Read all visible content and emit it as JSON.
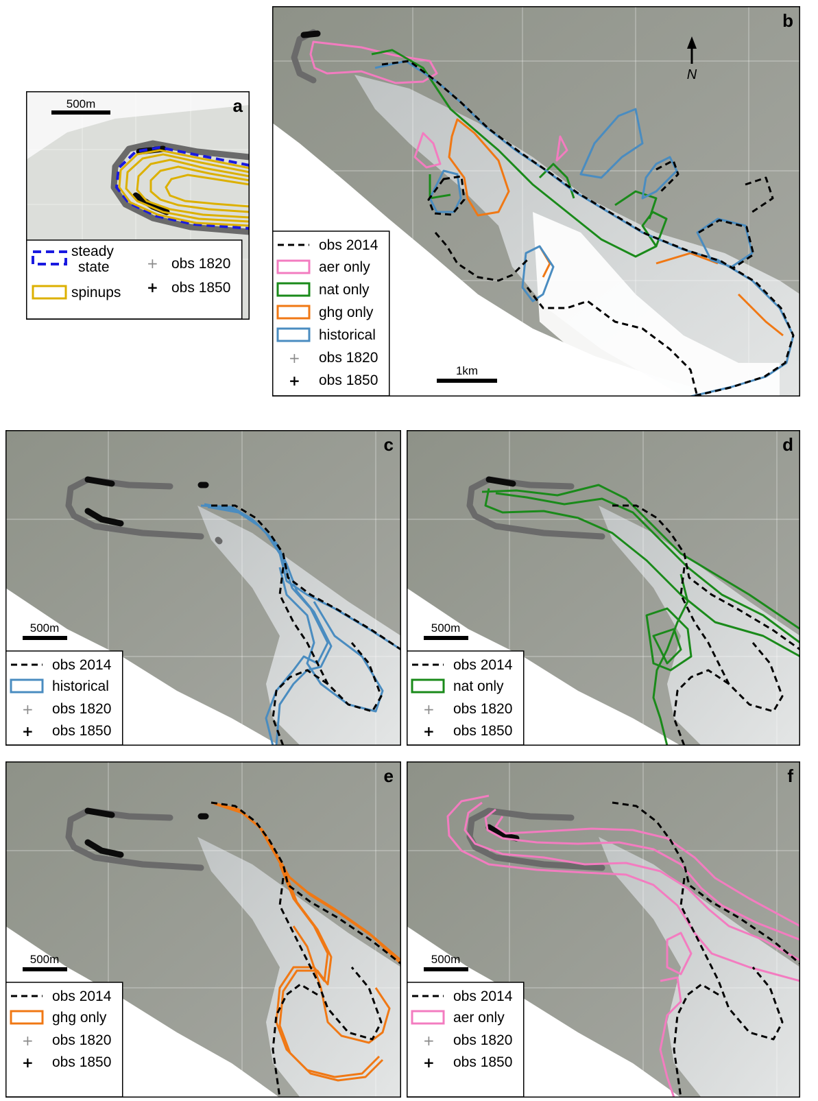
{
  "colors": {
    "obs2014": "#000000",
    "aer_only": "#f37cc0",
    "nat_only": "#1a8a1a",
    "ghg_only": "#f07814",
    "historical": "#4a8cc0",
    "spinups": "#dcb000",
    "steady_state": "#1a1ae0",
    "obs1820": "#7a7a7a",
    "obs1850": "#000000"
  },
  "panels": {
    "a": {
      "label": "a",
      "scalebar": "500m",
      "legend": {
        "steady_state": "steady",
        "steady_state_2": "state",
        "spinups": "spinups",
        "obs1820": "obs 1820",
        "obs1850": "obs 1850"
      }
    },
    "b": {
      "label": "b",
      "scalebar": "1km",
      "north": "N",
      "legend": {
        "obs2014": "obs 2014",
        "aer": "aer only",
        "nat": "nat only",
        "ghg": "ghg only",
        "hist": "historical",
        "obs1820": "obs 1820",
        "obs1850": "obs 1850"
      }
    },
    "c": {
      "label": "c",
      "scalebar": "500m",
      "legend": {
        "obs2014": "obs 2014",
        "run": "historical",
        "obs1820": "obs 1820",
        "obs1850": "obs 1850"
      }
    },
    "d": {
      "label": "d",
      "scalebar": "500m",
      "legend": {
        "obs2014": "obs 2014",
        "run": "nat only",
        "obs1820": "obs 1820",
        "obs1850": "obs 1850"
      }
    },
    "e": {
      "label": "e",
      "scalebar": "500m",
      "legend": {
        "obs2014": "obs 2014",
        "run": "ghg only",
        "obs1820": "obs 1820",
        "obs1850": "obs 1850"
      }
    },
    "f": {
      "label": "f",
      "scalebar": "500m",
      "legend": {
        "obs2014": "obs 2014",
        "run": "aer only",
        "obs1820": "obs 1820",
        "obs1850": "obs 1850"
      }
    }
  }
}
